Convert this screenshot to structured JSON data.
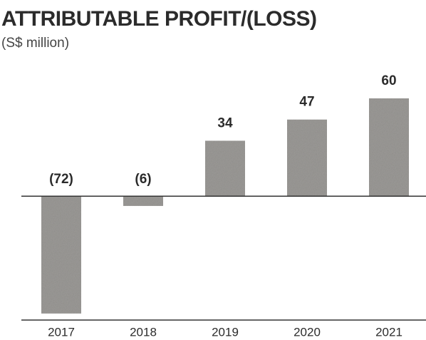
{
  "chart_data": {
    "type": "bar",
    "title": "ATTRIBUTABLE PROFIT/(LOSS)",
    "subtitle": "(S$ million)",
    "categories": [
      "2017",
      "2018",
      "2019",
      "2020",
      "2021"
    ],
    "values": [
      -72,
      -6,
      34,
      47,
      60
    ],
    "value_labels": [
      "(72)",
      "(6)",
      "34",
      "47",
      "60"
    ],
    "color": "#9c9a97",
    "ylim": [
      -76,
      60
    ]
  }
}
